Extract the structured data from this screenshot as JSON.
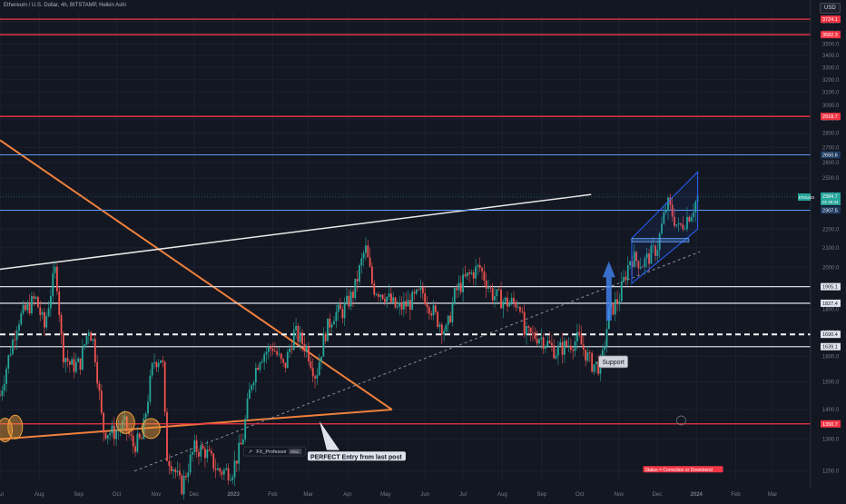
{
  "header": {
    "title": "Ethereum / U.S. Dollar, 4h, BITSTAMP, Heikin Ashi",
    "currency_button": "USD"
  },
  "colors": {
    "background": "#131722",
    "grid": "#1c2130",
    "up": "#26a69a",
    "down": "#ef5350",
    "orange": "#f0803c",
    "red_line": "#f23645",
    "white_line": "#d1d4dc",
    "blue_line": "#5b9cf6"
  },
  "chart_data": {
    "type": "candlestick",
    "symbol": "ETHUSD",
    "x_ticks": [
      "Jul",
      "Aug",
      "Sep",
      "Oct",
      "Nov",
      "Dec",
      "2023",
      "Feb",
      "Mar",
      "Apr",
      "May",
      "Jun",
      "Jul",
      "Aug",
      "Sep",
      "Oct",
      "Nov",
      "Dec",
      "2024",
      "Feb",
      "Mar"
    ],
    "x_start": "2022-07-01",
    "x_end": "2024-03-31",
    "y_ticks": [
      1200,
      1300,
      1400,
      1500,
      1600,
      1700,
      1800,
      1900,
      2000,
      2100,
      2200,
      2300,
      2400,
      2500,
      2600,
      2700,
      2800,
      2900,
      3000,
      3100,
      3200,
      3300,
      3400,
      3500,
      3600,
      3700
    ],
    "y_range": [
      1175,
      3785
    ],
    "price_series": [
      [
        "2022-07-01",
        1450
      ],
      [
        "2022-07-08",
        1600
      ],
      [
        "2022-07-15",
        1750
      ],
      [
        "2022-07-22",
        1800
      ],
      [
        "2022-07-29",
        1850
      ],
      [
        "2022-08-05",
        1720
      ],
      [
        "2022-08-10",
        1880
      ],
      [
        "2022-08-14",
        2000
      ],
      [
        "2022-08-19",
        1620
      ],
      [
        "2022-08-26",
        1560
      ],
      [
        "2022-09-02",
        1570
      ],
      [
        "2022-09-09",
        1720
      ],
      [
        "2022-09-13",
        1650
      ],
      [
        "2022-09-20",
        1330
      ],
      [
        "2022-09-28",
        1320
      ],
      [
        "2022-10-07",
        1350
      ],
      [
        "2022-10-14",
        1280
      ],
      [
        "2022-10-21",
        1300
      ],
      [
        "2022-10-30",
        1580
      ],
      [
        "2022-11-06",
        1600
      ],
      [
        "2022-11-09",
        1250
      ],
      [
        "2022-11-14",
        1220
      ],
      [
        "2022-11-21",
        1150
      ],
      [
        "2022-12-01",
        1270
      ],
      [
        "2022-12-10",
        1260
      ],
      [
        "2022-12-20",
        1200
      ],
      [
        "2022-12-31",
        1200
      ],
      [
        "2023-01-08",
        1290
      ],
      [
        "2023-01-15",
        1500
      ],
      [
        "2023-01-22",
        1600
      ],
      [
        "2023-02-01",
        1640
      ],
      [
        "2023-02-10",
        1550
      ],
      [
        "2023-02-18",
        1700
      ],
      [
        "2023-02-28",
        1630
      ],
      [
        "2023-03-07",
        1520
      ],
      [
        "2023-03-14",
        1690
      ],
      [
        "2023-03-21",
        1780
      ],
      [
        "2023-03-28",
        1790
      ],
      [
        "2023-04-06",
        1880
      ],
      [
        "2023-04-15",
        2100
      ],
      [
        "2023-04-21",
        1900
      ],
      [
        "2023-04-30",
        1870
      ],
      [
        "2023-05-10",
        1800
      ],
      [
        "2023-05-20",
        1830
      ],
      [
        "2023-05-30",
        1880
      ],
      [
        "2023-06-10",
        1760
      ],
      [
        "2023-06-18",
        1700
      ],
      [
        "2023-06-25",
        1880
      ],
      [
        "2023-07-04",
        1950
      ],
      [
        "2023-07-14",
        2000
      ],
      [
        "2023-07-24",
        1870
      ],
      [
        "2023-08-04",
        1830
      ],
      [
        "2023-08-15",
        1830
      ],
      [
        "2023-08-18",
        1690
      ],
      [
        "2023-08-31",
        1680
      ],
      [
        "2023-09-12",
        1620
      ],
      [
        "2023-09-30",
        1670
      ],
      [
        "2023-10-10",
        1570
      ],
      [
        "2023-10-18",
        1560
      ],
      [
        "2023-10-24",
        1780
      ],
      [
        "2023-11-01",
        1850
      ],
      [
        "2023-11-10",
        2050
      ],
      [
        "2023-11-20",
        2020
      ],
      [
        "2023-12-01",
        2100
      ],
      [
        "2023-12-09",
        2350
      ],
      [
        "2023-12-18",
        2200
      ],
      [
        "2023-12-28",
        2300
      ],
      [
        "2024-01-02",
        2384
      ]
    ],
    "horizontal_levels": [
      {
        "price": 3724.1,
        "label": "3724.1",
        "kind": "red"
      },
      {
        "price": 3582.3,
        "label": "3582.3",
        "kind": "red"
      },
      {
        "price": 2918.7,
        "label": "2918.7",
        "kind": "red"
      },
      {
        "price": 2650.6,
        "label": "2650.6",
        "kind": "blue"
      },
      {
        "price": 2307.5,
        "label": "2307.5",
        "kind": "blue"
      },
      {
        "price": 1905.1,
        "label": "1905.1",
        "kind": "white"
      },
      {
        "price": 1827.4,
        "label": "1827.4",
        "kind": "white"
      },
      {
        "price": 1690.4,
        "label": "1690.4",
        "kind": "dashed"
      },
      {
        "price": 1639.1,
        "label": "1639.1",
        "kind": "white"
      },
      {
        "price": 1350.7,
        "label": "1350.7",
        "kind": "red"
      }
    ],
    "last_price": {
      "symbol": "ETHUSD",
      "price": "2384.7",
      "countdown": "01:39:44"
    },
    "annotations": {
      "support": "Support",
      "author": "FX_Professor",
      "author_badge": "PRO",
      "callout": "PERFECT Entry from last post",
      "status": "Status = Correction or Downtrend"
    },
    "grid": true
  }
}
